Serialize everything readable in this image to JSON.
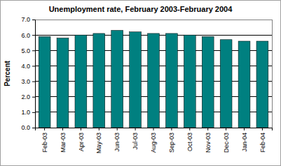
{
  "chart_data": {
    "type": "bar",
    "title": "Unemployment rate, February 2003-February 2004",
    "y_label": "Percent",
    "categories": [
      "Feb-03",
      "Mar-03",
      "Apr-03",
      "May-03",
      "Jun-03",
      "Jul-03",
      "Aug-03",
      "Sep-03",
      "Oct-03",
      "Nov-03",
      "Dec-03",
      "Jan-04",
      "Feb-04"
    ],
    "values": [
      5.9,
      5.8,
      6.0,
      6.1,
      6.3,
      6.2,
      6.1,
      6.1,
      6.0,
      5.9,
      5.7,
      5.6,
      5.6
    ],
    "color": "#008080",
    "ylim": [
      0,
      7
    ],
    "yticks": [
      {
        "value": 0,
        "label": "0.0"
      },
      {
        "value": 1,
        "label": "1.0"
      },
      {
        "value": 2,
        "label": "2.0"
      },
      {
        "value": 3,
        "label": "3.0"
      },
      {
        "value": 4,
        "label": "4.0"
      },
      {
        "value": 5,
        "label": "5.0"
      },
      {
        "value": 6,
        "label": "6.0"
      },
      {
        "value": 7,
        "label": "7.0"
      }
    ],
    "grid": true
  }
}
